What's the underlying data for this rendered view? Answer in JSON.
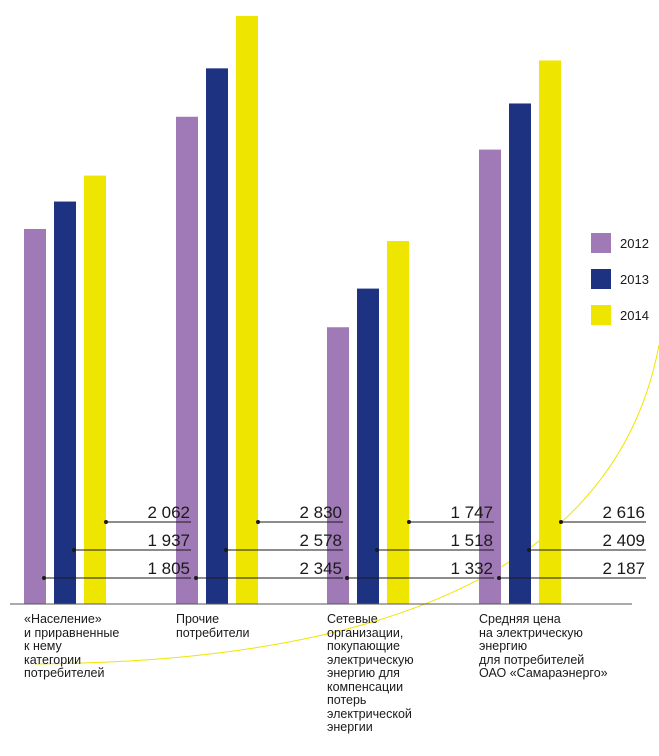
{
  "chart_data": {
    "type": "bar",
    "categories": [
      "«Население»\nи приравненные\nк нему\nкатегории\nпотребителей",
      "Прочие\nпотребители",
      "Сетевые\nорганизации,\nпокупающие\nэлектрическую\nэнергию для\nкомпенсации\nпотерь\nэлектрической\nэнергии",
      "Средняя цена\nна электрическую\nэнергию\nдля потребителей\nОАО «Самараэнерго»"
    ],
    "series": [
      {
        "name": "2012",
        "color": "#a07ab6",
        "values": [
          1805,
          2345,
          1332,
          2187
        ],
        "labels": [
          "1 805",
          "2 345",
          "1 332",
          "2 187"
        ]
      },
      {
        "name": "2013",
        "color": "#1e3282",
        "values": [
          1937,
          2578,
          1518,
          2409
        ],
        "labels": [
          "1 937",
          "2 578",
          "1 518",
          "2 409"
        ]
      },
      {
        "name": "2014",
        "color": "#eee600",
        "values": [
          2062,
          2830,
          1747,
          2616
        ],
        "labels": [
          "2 062",
          "2 830",
          "1 747",
          "2 616"
        ]
      }
    ],
    "ylim": [
      0,
      2830
    ],
    "legend": "right",
    "grid": false
  }
}
